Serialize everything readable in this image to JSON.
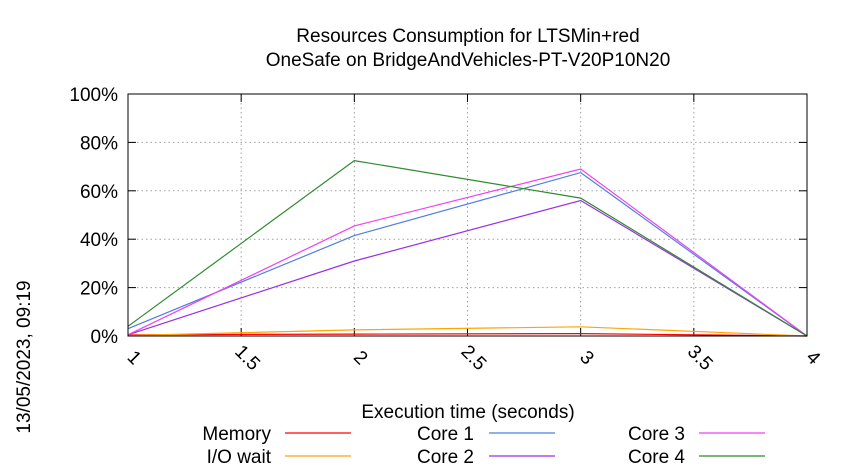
{
  "chart_data": {
    "type": "line",
    "title_lines": [
      "Resources Consumption for LTSMin+red",
      "OneSafe on BridgeAndVehicles-PT-V20P10N20"
    ],
    "xlabel": "Execution time (seconds)",
    "ylabel": "",
    "side_label": "13/05/2023, 09:19",
    "xlim": [
      1,
      4
    ],
    "ylim": [
      0,
      100
    ],
    "x_ticks": [
      1,
      1.5,
      2,
      2.5,
      3,
      3.5,
      4
    ],
    "x_tick_labels": [
      "1",
      "1.5",
      "2",
      "2.5",
      "3",
      "3.5",
      "4"
    ],
    "y_ticks": [
      0,
      20,
      40,
      60,
      80,
      100
    ],
    "y_tick_labels": [
      "0%",
      "20%",
      "40%",
      "60%",
      "80%",
      "100%"
    ],
    "grid": true,
    "legend_position": "bottom",
    "x": [
      1,
      2,
      3,
      4
    ],
    "series": [
      {
        "name": "Memory",
        "color": "#ff0000",
        "values": [
          0.5,
          0.8,
          1.0,
          0
        ]
      },
      {
        "name": "I/O wait",
        "color": "#ffa500",
        "values": [
          0.2,
          2.5,
          3.8,
          0
        ]
      },
      {
        "name": "Core 1",
        "color": "#4f7fdf",
        "values": [
          3,
          41.5,
          67.5,
          0
        ]
      },
      {
        "name": "Core 2",
        "color": "#9a2ee6",
        "values": [
          0.5,
          31,
          56,
          0
        ]
      },
      {
        "name": "Core 3",
        "color": "#f040f0",
        "values": [
          0.5,
          45.5,
          69,
          0
        ]
      },
      {
        "name": "Core 4",
        "color": "#2e8b2e",
        "values": [
          4,
          72.5,
          57,
          0
        ]
      }
    ]
  }
}
